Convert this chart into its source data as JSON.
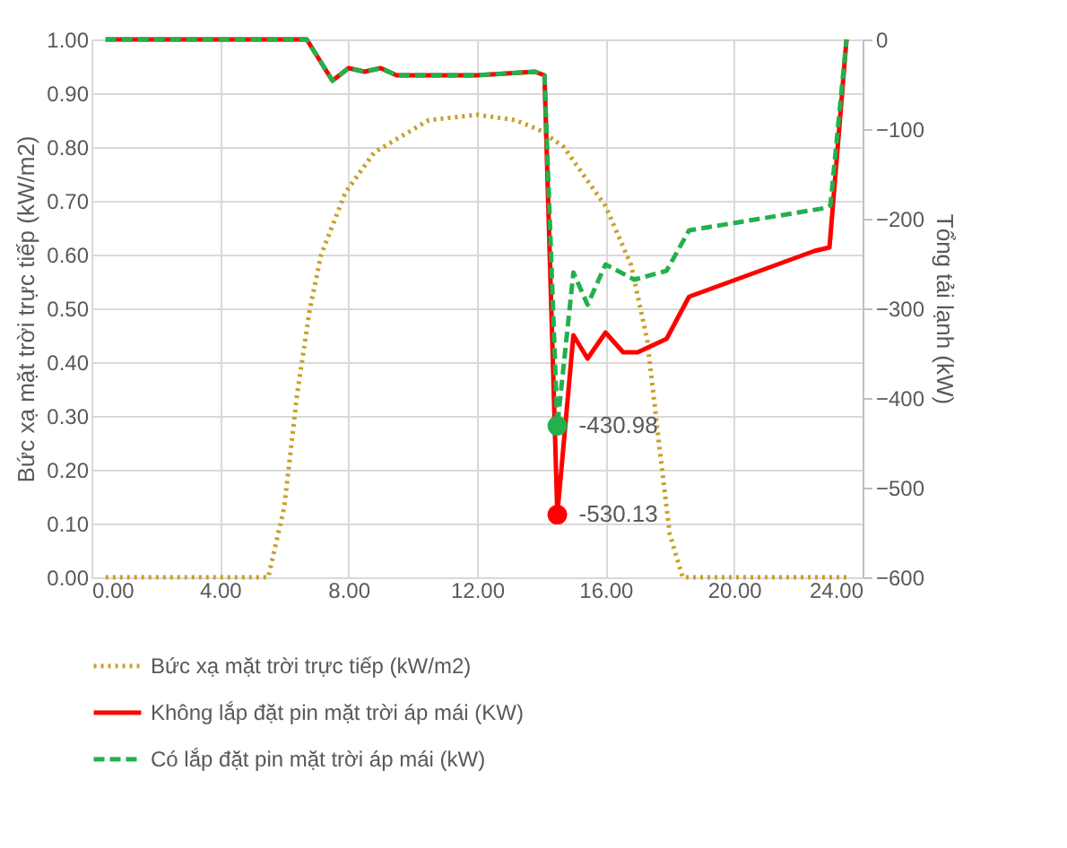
{
  "chart_data": {
    "type": "line",
    "ylabel": "Bức xạ mặt trời trực tiếp (kW/m2)",
    "y2label": "Tổng tải lạnh (kW)",
    "xlim": [
      0,
      24
    ],
    "xticks": [
      {
        "value": 0,
        "label": "0.00"
      },
      {
        "value": 4,
        "label": "4.00"
      },
      {
        "value": 8,
        "label": "8.00"
      },
      {
        "value": 12,
        "label": "12.00"
      },
      {
        "value": 16,
        "label": "16.00"
      },
      {
        "value": 20,
        "label": "20.00"
      },
      {
        "value": 24,
        "label": "24.00"
      }
    ],
    "ylim": [
      0,
      1
    ],
    "yticks": [
      {
        "value": 0,
        "label": "0.00"
      },
      {
        "value": 0.1,
        "label": "0.10"
      },
      {
        "value": 0.2,
        "label": "0.20"
      },
      {
        "value": 0.3,
        "label": "0.30"
      },
      {
        "value": 0.4,
        "label": "0.40"
      },
      {
        "value": 0.5,
        "label": "0.50"
      },
      {
        "value": 0.6,
        "label": "0.60"
      },
      {
        "value": 0.7,
        "label": "0.70"
      },
      {
        "value": 0.8,
        "label": "0.80"
      },
      {
        "value": 0.9,
        "label": "0.90"
      },
      {
        "value": 1,
        "label": "1.00"
      }
    ],
    "y2lim": [
      -600,
      0
    ],
    "y2ticks": [
      -600,
      -500,
      -400,
      -300,
      -200,
      -100,
      0
    ],
    "grid": true,
    "legend": "bottom",
    "marker": "none",
    "series": [
      {
        "name": "Bức xạ mặt trời trực tiếp (kW/m2)",
        "color": "#c9a02a",
        "line_style": "dotted",
        "x": [
          0.44,
          5.5,
          6.0,
          6.4,
          6.8,
          7.15,
          7.9,
          8.8,
          10.5,
          12.0,
          13.2,
          14.0,
          14.7,
          16.0,
          16.8,
          17.3,
          17.7,
          18.0,
          18.4,
          23.5
        ],
        "values": [
          0,
          0,
          0.13,
          0.34,
          0.5,
          0.6,
          0.715,
          0.79,
          0.85,
          0.86,
          0.85,
          0.83,
          0.8,
          0.69,
          0.58,
          0.44,
          0.23,
          0.08,
          0,
          0
        ]
      },
      {
        "name": "Không lắp đặt pin mặt trời áp mái (KW)",
        "color": "#ff0000",
        "line_style": "solid",
        "axis": "y2",
        "x": [
          0.44,
          6.7,
          7.5,
          8.0,
          8.5,
          9.0,
          9.5,
          12.0,
          13.8,
          14.1,
          14.5,
          15.0,
          15.44,
          16.0,
          16.55,
          17.0,
          17.9,
          18.6,
          22.5,
          22.97,
          23.5
        ],
        "values": [
          0,
          0,
          -46,
          -32,
          -36,
          -32,
          -40,
          -40,
          -36,
          -40,
          -530.13,
          -330,
          -356,
          -327,
          -349,
          -349,
          -334,
          -287,
          -236,
          -232,
          0
        ]
      },
      {
        "name": "Có lắp đặt pin mặt trời áp mái (kW)",
        "color": "#22b14c",
        "line_style": "dashed",
        "axis": "y2",
        "x": [
          0.44,
          6.7,
          7.5,
          8.0,
          8.5,
          9.0,
          9.5,
          12.0,
          13.8,
          14.1,
          14.5,
          15.0,
          15.44,
          16.0,
          16.9,
          17.9,
          18.6,
          22.85,
          23.0,
          23.5
        ],
        "values": [
          0,
          0,
          -46,
          -32,
          -36,
          -32,
          -40,
          -40,
          -36,
          -40,
          -430.98,
          -260,
          -296,
          -251,
          -268,
          -258,
          -213,
          -188,
          -185,
          0
        ]
      },
      {
        "type": "scatter",
        "color": "#22b14c",
        "axis": "y2",
        "marker": "circle",
        "x": [
          14.5
        ],
        "values": [
          -430.98
        ],
        "value_labels": [
          "-430.98"
        ]
      },
      {
        "type": "scatter",
        "color": "#ff0000",
        "axis": "y2",
        "marker": "circle",
        "x": [
          14.5
        ],
        "values": [
          -530.13
        ],
        "value_labels": [
          "-530.13"
        ]
      }
    ]
  }
}
